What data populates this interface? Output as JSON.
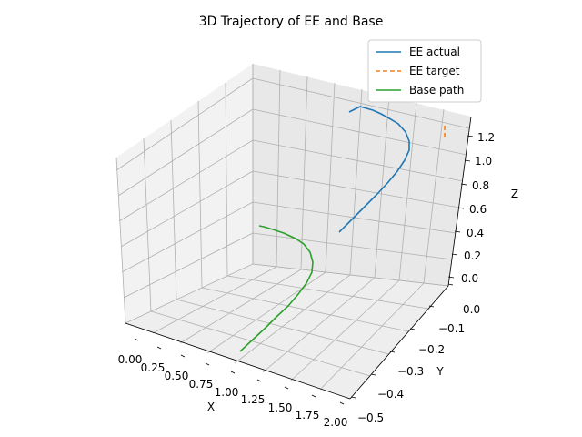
{
  "chart_data": {
    "type": "line",
    "title": "3D Trajectory of EE and Base",
    "xlabel": "X",
    "ylabel": "Y",
    "zlabel": "Z",
    "xlim": [
      0.0,
      2.0
    ],
    "ylim": [
      -0.5,
      0.0
    ],
    "zlim": [
      0.0,
      1.3
    ],
    "x_ticks": [
      "0.00",
      "0.25",
      "0.50",
      "0.75",
      "1.00",
      "1.25",
      "1.50",
      "1.75",
      "2.00"
    ],
    "y_ticks": [
      "0.0",
      "−0.1",
      "−0.2",
      "−0.3",
      "−0.4",
      "−0.5"
    ],
    "z_ticks": [
      "0.0",
      "0.2",
      "0.4",
      "0.6",
      "0.8",
      "1.0",
      "1.2"
    ],
    "grid": true,
    "legend_position": "top-right",
    "series": [
      {
        "name": "EE actual",
        "color": "#1f77b4",
        "style": "solid",
        "points": [
          [
            1.0,
            0.0,
            0.4
          ],
          [
            1.2,
            -0.1,
            0.5
          ],
          [
            1.4,
            -0.2,
            0.6
          ],
          [
            1.6,
            -0.3,
            0.8
          ],
          [
            1.8,
            -0.4,
            1.0
          ],
          [
            1.9,
            -0.45,
            1.2
          ],
          [
            1.92,
            -0.48,
            1.3
          ]
        ]
      },
      {
        "name": "EE target",
        "color": "#ff7f0e",
        "style": "dashed",
        "points": [
          [
            2.0,
            0.0,
            1.25
          ],
          [
            2.0,
            0.0,
            1.15
          ]
        ]
      },
      {
        "name": "Base path",
        "color": "#2ca02c",
        "style": "solid",
        "points": [
          [
            0.6,
            0.0,
            0.0
          ],
          [
            0.95,
            -0.2,
            0.0
          ],
          [
            1.3,
            -0.4,
            0.0
          ],
          [
            1.4,
            -0.45,
            0.0
          ],
          [
            1.35,
            -0.5,
            0.0
          ]
        ]
      }
    ]
  }
}
